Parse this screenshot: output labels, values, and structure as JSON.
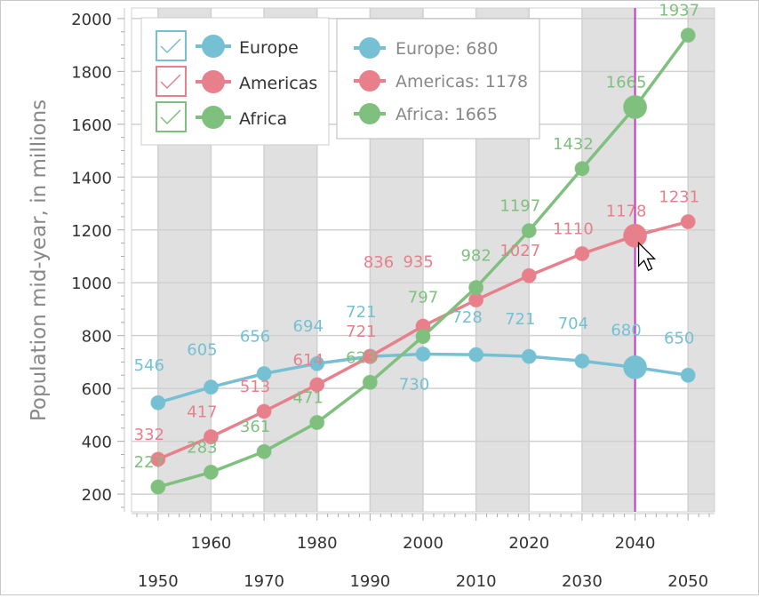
{
  "chart_data": {
    "type": "line",
    "ylabel": "Population mid-year, in millions",
    "xlabel": "",
    "x": [
      1950,
      1960,
      1970,
      1980,
      1990,
      2000,
      2010,
      2020,
      2030,
      2040,
      2050
    ],
    "xlim": [
      1945,
      2055
    ],
    "ylim": [
      133,
      2040
    ],
    "yticks": [
      200,
      400,
      600,
      800,
      1000,
      1200,
      1400,
      1600,
      1800,
      2000
    ],
    "xticks_row1": [
      1960,
      1980,
      2000,
      2020,
      2040
    ],
    "xticks_row2": [
      1950,
      1970,
      1990,
      2010,
      2030,
      2050
    ],
    "grid": true,
    "legend_position": "top-left",
    "series": [
      {
        "name": "Europe",
        "color": "#76c0d3",
        "values": [
          546,
          605,
          656,
          694,
          721,
          730,
          728,
          721,
          704,
          680,
          650
        ]
      },
      {
        "name": "Americas",
        "color": "#e8808c",
        "values": [
          332,
          417,
          513,
          614,
          721,
          836,
          935,
          1027,
          1110,
          1178,
          1231
        ]
      },
      {
        "name": "Africa",
        "color": "#7fc07f",
        "values": [
          227,
          283,
          361,
          471,
          623,
          797,
          982,
          1197,
          1432,
          1665,
          1937
        ]
      }
    ],
    "crosshair_x": 2040,
    "tooltip": {
      "items": [
        "Europe: 680",
        "Americas: 1178",
        "Africa: 1665"
      ]
    }
  }
}
